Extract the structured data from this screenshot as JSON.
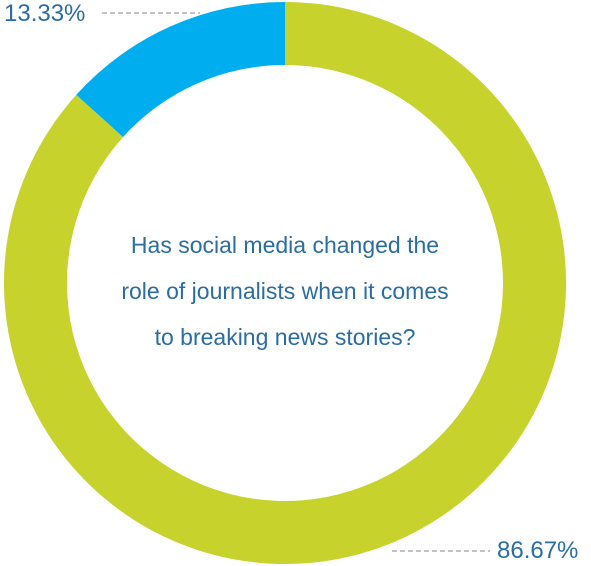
{
  "chart_data": {
    "type": "pie",
    "title": "Has social media changed the role of journalists when it comes to breaking news stories?",
    "title_lines": [
      "Has social media changed the",
      "role of journalists when it comes",
      "to breaking news stories?"
    ],
    "values": [
      13.33,
      86.67
    ],
    "labels": [
      "13.33%",
      "86.67%"
    ],
    "colors": [
      "#00aeef",
      "#c8d22d"
    ],
    "donut": true,
    "legend": "none"
  }
}
